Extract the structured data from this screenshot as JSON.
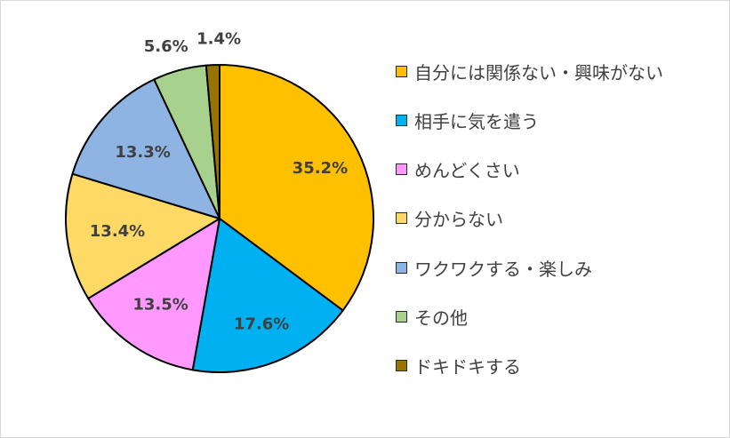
{
  "chart_data": {
    "type": "pie",
    "categories": [
      "自分には関係ない・興味がない",
      "相手に気を遣う",
      "めんどくさい",
      "分からない",
      "ワクワクする・楽しみ",
      "その他",
      "ドキドキする"
    ],
    "values": [
      35.2,
      17.6,
      13.5,
      13.4,
      13.3,
      5.6,
      1.4
    ],
    "data_labels": [
      "35.2%",
      "17.6%",
      "13.5%",
      "13.4%",
      "13.3%",
      "5.6%",
      "1.4%"
    ],
    "colors": [
      "#FFC000",
      "#00B0F0",
      "#FF99FF",
      "#FFD966",
      "#8DB4E2",
      "#A9D18E",
      "#997300"
    ],
    "start_angle_deg": 0,
    "direction": "clockwise",
    "legend_position": "right"
  }
}
